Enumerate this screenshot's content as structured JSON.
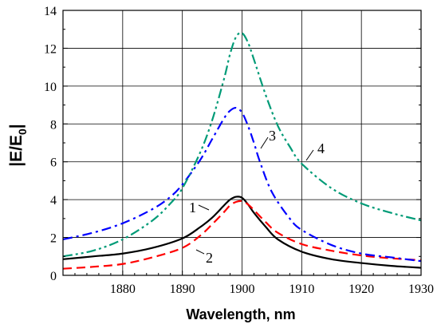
{
  "chart_data": {
    "type": "line",
    "xlabel": "Wavelength,  nm",
    "ylabel": {
      "main": "|E/E",
      "sub": "0",
      "end": "|"
    },
    "xlim": [
      1870,
      1930
    ],
    "ylim": [
      0,
      14
    ],
    "xticks": [
      1880,
      1890,
      1900,
      1910,
      1920,
      1930
    ],
    "yticks": [
      0,
      2,
      4,
      6,
      8,
      10,
      12,
      14
    ],
    "grid": true,
    "series": [
      {
        "label": "1",
        "color": "#000000",
        "dash": "solid",
        "x": [
          1870,
          1875,
          1880,
          1885,
          1890,
          1893,
          1895,
          1897,
          1898,
          1899,
          1900,
          1901,
          1902,
          1904,
          1906,
          1910,
          1915,
          1920,
          1925,
          1930
        ],
        "y": [
          0.85,
          1.0,
          1.15,
          1.45,
          1.95,
          2.55,
          3.05,
          3.7,
          4.0,
          4.15,
          4.1,
          3.75,
          3.3,
          2.55,
          1.9,
          1.25,
          0.85,
          0.65,
          0.5,
          0.4
        ]
      },
      {
        "label": "2",
        "color": "#ff0000",
        "dash": "dashed",
        "x": [
          1870,
          1875,
          1880,
          1885,
          1890,
          1893,
          1895,
          1897,
          1898,
          1899,
          1900,
          1901,
          1902,
          1904,
          1906,
          1910,
          1915,
          1920,
          1925,
          1930
        ],
        "y": [
          0.35,
          0.45,
          0.6,
          0.95,
          1.45,
          2.1,
          2.7,
          3.35,
          3.7,
          3.88,
          3.92,
          3.75,
          3.45,
          2.8,
          2.25,
          1.65,
          1.3,
          1.05,
          0.9,
          0.8
        ]
      },
      {
        "label": "3",
        "color": "#0000ff",
        "dash": "dashdot",
        "x": [
          1870,
          1875,
          1880,
          1885,
          1888,
          1890,
          1893,
          1895,
          1897,
          1898,
          1899,
          1900,
          1901,
          1902,
          1903,
          1905,
          1908,
          1910,
          1915,
          1920,
          1925,
          1930
        ],
        "y": [
          1.9,
          2.25,
          2.75,
          3.5,
          4.15,
          4.8,
          6.1,
          7.2,
          8.3,
          8.7,
          8.85,
          8.6,
          7.9,
          7.0,
          6.0,
          4.4,
          3.0,
          2.4,
          1.6,
          1.15,
          0.95,
          0.75
        ]
      },
      {
        "label": "4",
        "color": "#009b77",
        "dash": "dashdotdot",
        "x": [
          1870,
          1875,
          1880,
          1885,
          1888,
          1890,
          1893,
          1895,
          1897,
          1898,
          1899,
          1900,
          1901,
          1902,
          1904,
          1906,
          1908,
          1910,
          1915,
          1920,
          1925,
          1930
        ],
        "y": [
          1.0,
          1.3,
          1.9,
          2.9,
          3.8,
          4.6,
          6.5,
          8.2,
          10.4,
          11.7,
          12.6,
          12.8,
          12.3,
          11.4,
          9.5,
          7.9,
          6.8,
          5.9,
          4.6,
          3.8,
          3.3,
          2.9
        ]
      }
    ],
    "annotations": [
      {
        "text": "1",
        "series": "1"
      },
      {
        "text": "2",
        "series": "2"
      },
      {
        "text": "3",
        "series": "3"
      },
      {
        "text": "4",
        "series": "4"
      }
    ]
  }
}
